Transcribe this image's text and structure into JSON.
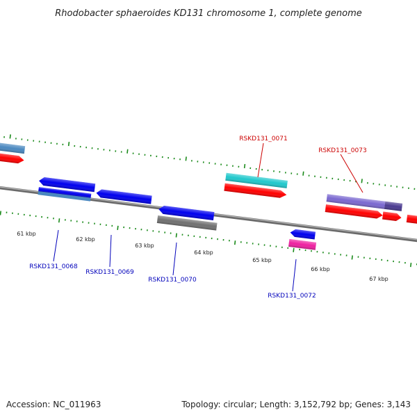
{
  "header": {
    "title": "Rhodobacter sphaeroides KD131 chromosome 1, complete genome"
  },
  "footer": {
    "accession": "Accession: NC_011963",
    "topology": "Topology: circular; Length: 3,152,792 bp; Genes: 3,143"
  },
  "ruler": {
    "ticks": [
      {
        "label": "61 kbp"
      },
      {
        "label": "62 kbp"
      },
      {
        "label": "63 kbp"
      },
      {
        "label": "64 kbp"
      },
      {
        "label": "65 kbp"
      },
      {
        "label": "66 kbp"
      },
      {
        "label": "67 kbp"
      }
    ]
  },
  "gene_labels": {
    "top": [
      {
        "text": "RSKD131_0071",
        "color": "#cc0000"
      },
      {
        "text": "RSKD131_0073",
        "color": "#cc0000"
      }
    ],
    "bottom": [
      {
        "text": "RSKD131_0068",
        "color": "#0000bb"
      },
      {
        "text": "RSKD131_0069",
        "color": "#0000bb"
      },
      {
        "text": "RSKD131_0070",
        "color": "#0000bb"
      },
      {
        "text": "RSKD131_0072",
        "color": "#0000bb"
      }
    ]
  },
  "colors": {
    "backbone": "#8a8a8a",
    "tick": "#1a8a1a",
    "forward_cds": "#ff0000",
    "reverse_cds": "#0000ee",
    "cyan_gene": "#20c8cc",
    "purple_gene": "#7a68d0",
    "gray_gene": "#707070",
    "steel_gene": "#4a88c0",
    "magenta_gene": "#ee20a0"
  }
}
